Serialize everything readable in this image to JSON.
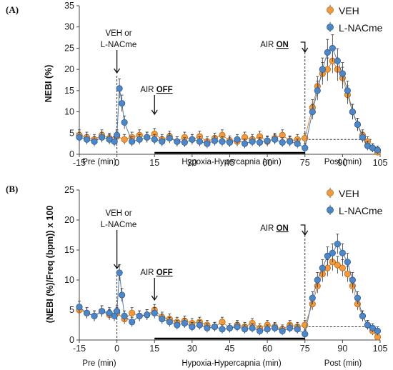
{
  "colors": {
    "veh": "#F39A3F",
    "nac": "#4F86C6",
    "veh_edge": "#B86A1C",
    "nac_edge": "#2C5C95"
  },
  "chart_data": [
    {
      "panel_label": "(A)",
      "type": "scatter",
      "ylabel": "NEBI (%)",
      "ylim": [
        0,
        35
      ],
      "yticks": [
        "0",
        "5",
        "10",
        "15",
        "20",
        "25",
        "30",
        "35"
      ],
      "xlim": [
        -15,
        105
      ],
      "xticks": [
        "-15",
        "0",
        "15",
        "30",
        "45",
        "60",
        "75",
        "90",
        "105"
      ],
      "section_labels": [
        "Pre (min)",
        "Hypoxia-Hypercapnia (min)",
        "Post (min)"
      ],
      "annotations": {
        "drug_line1": "VEH or",
        "drug_line2": "L-NACme",
        "air_off_prefix": "AIR ",
        "air_off_bold": "OFF",
        "air_on_prefix": "AIR ",
        "air_on_bold": "ON"
      },
      "baseline": 3.5,
      "series": [
        {
          "name": "VEH",
          "x": [
            -15,
            -12,
            -9,
            -6,
            -3,
            0,
            3,
            6,
            9,
            12,
            15,
            18,
            21,
            24,
            27,
            30,
            33,
            36,
            39,
            42,
            45,
            48,
            51,
            54,
            57,
            60,
            63,
            66,
            69,
            72,
            75,
            78,
            80,
            82,
            84,
            86,
            88,
            90,
            92,
            94,
            96,
            98,
            100,
            102,
            104
          ],
          "y": [
            4.5,
            4.0,
            3.5,
            4.5,
            3.8,
            4.2,
            3.5,
            4.0,
            4.5,
            4.0,
            4.8,
            3.5,
            4.2,
            3.0,
            4.0,
            3.5,
            4.2,
            3.0,
            3.8,
            4.5,
            3.2,
            3.0,
            4.0,
            3.5,
            4.2,
            3.0,
            3.8,
            4.5,
            3.2,
            3.5,
            3.8,
            11,
            16,
            19,
            20,
            22,
            20,
            18,
            14,
            10,
            7,
            4.5,
            3.0,
            1.5,
            0.5
          ]
        },
        {
          "name": "L-NACme",
          "x": [
            -15,
            -12,
            -9,
            -6,
            -3,
            -1,
            0,
            1,
            2,
            3,
            6,
            9,
            12,
            15,
            18,
            21,
            24,
            27,
            30,
            33,
            36,
            39,
            42,
            45,
            48,
            51,
            54,
            57,
            60,
            63,
            66,
            69,
            72,
            75,
            78,
            80,
            82,
            84,
            86,
            88,
            90,
            92,
            94,
            96,
            98,
            100,
            102,
            104
          ],
          "y": [
            4.0,
            3.5,
            3.0,
            4.0,
            3.5,
            3.0,
            4.5,
            15.5,
            12,
            7.5,
            3.0,
            3.5,
            4.0,
            3.5,
            3.0,
            3.8,
            3.0,
            2.8,
            3.5,
            3.0,
            2.5,
            3.2,
            3.0,
            2.8,
            3.5,
            2.5,
            3.0,
            2.8,
            3.2,
            3.5,
            2.8,
            3.0,
            2.5,
            1.5,
            10,
            15,
            20,
            24,
            25,
            22,
            19,
            15,
            10,
            7,
            4,
            2,
            1.5,
            1.0
          ]
        }
      ]
    },
    {
      "panel_label": "(B)",
      "type": "scatter",
      "ylabel": "(NEBI (%)/Freq (bpm)) x 100",
      "ylim": [
        0,
        25
      ],
      "yticks": [
        "0",
        "5",
        "10",
        "15",
        "20",
        "25"
      ],
      "xlim": [
        -15,
        105
      ],
      "xticks": [
        "-15",
        "0",
        "15",
        "30",
        "45",
        "60",
        "75",
        "90",
        "105"
      ],
      "section_labels": [
        "Pre (min)",
        "Hypoxia-Hypercapnia (min)",
        "Post (min)"
      ],
      "annotations": {
        "drug_line1": "VEH or",
        "drug_line2": "L-NACme",
        "air_off_prefix": "AIR ",
        "air_off_bold": "OFF",
        "air_on_prefix": "AIR ",
        "air_on_bold": "ON"
      },
      "baseline": 2.2,
      "series": [
        {
          "name": "VEH",
          "x": [
            -15,
            -12,
            -9,
            -6,
            -3,
            0,
            3,
            6,
            9,
            12,
            15,
            18,
            21,
            24,
            27,
            30,
            33,
            36,
            39,
            42,
            45,
            48,
            51,
            54,
            57,
            60,
            63,
            66,
            69,
            72,
            75,
            78,
            80,
            82,
            84,
            86,
            88,
            90,
            92,
            94,
            96,
            98,
            100,
            102,
            104
          ],
          "y": [
            5.0,
            4.5,
            4.0,
            4.8,
            4.2,
            4.5,
            3.5,
            4.5,
            4.0,
            4.2,
            5.0,
            3.8,
            3.5,
            3.0,
            3.2,
            2.8,
            3.0,
            2.5,
            2.2,
            3.0,
            2.0,
            2.5,
            2.2,
            2.8,
            2.0,
            2.5,
            2.2,
            1.8,
            2.5,
            2.2,
            2.5,
            6,
            9,
            11,
            12,
            13,
            12.5,
            12,
            11,
            9,
            6,
            4,
            2.5,
            1.5,
            0.5
          ]
        },
        {
          "name": "L-NACme",
          "x": [
            -15,
            -12,
            -9,
            -6,
            -3,
            -1,
            0,
            1,
            2,
            3,
            6,
            9,
            12,
            15,
            18,
            21,
            24,
            27,
            30,
            33,
            36,
            39,
            42,
            45,
            48,
            51,
            54,
            57,
            60,
            63,
            66,
            69,
            72,
            75,
            78,
            80,
            82,
            84,
            86,
            88,
            90,
            92,
            94,
            96,
            98,
            100,
            102,
            104
          ],
          "y": [
            5.5,
            4.5,
            4.0,
            4.8,
            4.5,
            4.0,
            4.8,
            11.2,
            7.5,
            4.0,
            3.0,
            4.0,
            4.2,
            4.5,
            3.5,
            3.0,
            2.5,
            2.8,
            2.2,
            2.5,
            2.0,
            2.2,
            1.8,
            2.0,
            2.2,
            1.8,
            2.0,
            1.5,
            1.8,
            2.0,
            1.5,
            2.0,
            1.8,
            1.0,
            7,
            10,
            12,
            14,
            14.5,
            16,
            14.5,
            13,
            10,
            7,
            4,
            2.5,
            2.0,
            1.5
          ]
        }
      ]
    }
  ]
}
